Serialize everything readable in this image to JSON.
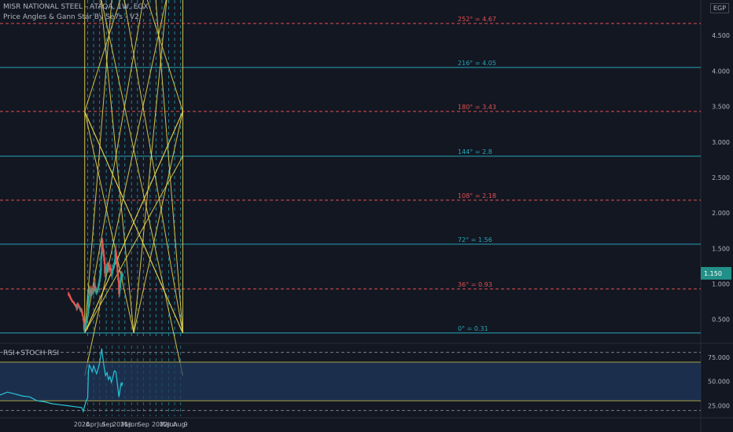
{
  "header": {
    "symbol_line": "MISR NATIONAL STEEL - ATAQA, 1W, EGX",
    "indicator_line": "Price Angles & Gann Star By Se7s - V2",
    "currency_badge": "EGP"
  },
  "lower_pane": {
    "title": "RSI+STOCH RSI"
  },
  "colors": {
    "background": "#131722",
    "gann_lines": "#e6d44a",
    "teal_levels": "#26a6b8",
    "red_levels": "#e05151",
    "up_candle": "#26a69a",
    "down_candle": "#ef5350",
    "rsi_line": "#26c6da",
    "rsi_band_fill": "#1f3a5f"
  },
  "chart_data": [
    {
      "type": "candlestick",
      "xlim": [
        -110,
        833
      ],
      "ylim": [
        0.22,
        5.0
      ],
      "x_ticks": [
        {
          "x": 0,
          "label": "2020"
        },
        {
          "x": 13,
          "label": "Apr"
        },
        {
          "x": 26,
          "label": "Jul"
        },
        {
          "x": 35,
          "label": "Sep"
        },
        {
          "x": 52,
          "label": "2021"
        },
        {
          "x": 61,
          "label": "Mar"
        },
        {
          "x": 70,
          "label": "Jun"
        },
        {
          "x": 83,
          "label": "Sep"
        },
        {
          "x": 105,
          "label": "2022"
        },
        {
          "x": 113,
          "label": "Mar"
        },
        {
          "x": 122,
          "label": "Jun"
        },
        {
          "x": 131,
          "label": "Aug"
        },
        {
          "x": 140,
          "label": "9"
        }
      ],
      "y_ticks": [
        {
          "v": 0.5,
          "label": "0.500"
        },
        {
          "v": 1.0,
          "label": "1.000"
        },
        {
          "v": 1.5,
          "label": "1.500"
        },
        {
          "v": 2.0,
          "label": "2.000"
        },
        {
          "v": 2.5,
          "label": "2.500"
        },
        {
          "v": 3.0,
          "label": "3.000"
        },
        {
          "v": 3.5,
          "label": "3.500"
        },
        {
          "v": 4.0,
          "label": "4.000"
        },
        {
          "v": 4.5,
          "label": "4.500"
        }
      ],
      "last_price_label": "1.150",
      "gann_levels": [
        {
          "v": 0.31,
          "label": "0° = 0.31",
          "color": "teal"
        },
        {
          "v": 0.93,
          "label": "36° = 0.93",
          "color": "red"
        },
        {
          "v": 1.56,
          "label": "72° = 1.56",
          "color": "teal"
        },
        {
          "v": 2.18,
          "label": "108° = 2.18",
          "color": "red"
        },
        {
          "v": 2.8,
          "label": "144° = 2.8",
          "color": "teal"
        },
        {
          "v": 3.43,
          "label": "180° = 3.43",
          "color": "red"
        },
        {
          "v": 4.05,
          "label": "216° = 4.05",
          "color": "teal"
        },
        {
          "v": 4.67,
          "label": "252° = 4.67",
          "color": "red"
        }
      ],
      "candles": [
        {
          "x": -18,
          "o": 0.86,
          "h": 0.89,
          "l": 0.83,
          "c": 0.85
        },
        {
          "x": -17,
          "o": 0.85,
          "h": 0.88,
          "l": 0.82,
          "c": 0.84
        },
        {
          "x": -16,
          "o": 0.84,
          "h": 0.86,
          "l": 0.8,
          "c": 0.81
        },
        {
          "x": -15,
          "o": 0.81,
          "h": 0.83,
          "l": 0.78,
          "c": 0.79
        },
        {
          "x": -14,
          "o": 0.79,
          "h": 0.81,
          "l": 0.76,
          "c": 0.77
        },
        {
          "x": -13,
          "o": 0.77,
          "h": 0.79,
          "l": 0.74,
          "c": 0.75
        },
        {
          "x": -12,
          "o": 0.75,
          "h": 0.77,
          "l": 0.73,
          "c": 0.74
        },
        {
          "x": -11,
          "o": 0.74,
          "h": 0.76,
          "l": 0.72,
          "c": 0.73
        },
        {
          "x": -10,
          "o": 0.73,
          "h": 0.75,
          "l": 0.7,
          "c": 0.71
        },
        {
          "x": -9,
          "o": 0.71,
          "h": 0.73,
          "l": 0.68,
          "c": 0.7
        },
        {
          "x": -8,
          "o": 0.7,
          "h": 0.72,
          "l": 0.67,
          "c": 0.69
        },
        {
          "x": -7,
          "o": 0.69,
          "h": 0.71,
          "l": 0.62,
          "c": 0.65
        },
        {
          "x": -6,
          "o": 0.65,
          "h": 0.74,
          "l": 0.63,
          "c": 0.72
        },
        {
          "x": -5,
          "o": 0.72,
          "h": 0.74,
          "l": 0.68,
          "c": 0.7
        },
        {
          "x": -4,
          "o": 0.7,
          "h": 0.72,
          "l": 0.66,
          "c": 0.68
        },
        {
          "x": -3,
          "o": 0.68,
          "h": 0.7,
          "l": 0.64,
          "c": 0.66
        },
        {
          "x": -2,
          "o": 0.66,
          "h": 0.68,
          "l": 0.61,
          "c": 0.63
        },
        {
          "x": -1,
          "o": 0.63,
          "h": 0.66,
          "l": 0.6,
          "c": 0.64
        },
        {
          "x": 0,
          "o": 0.64,
          "h": 0.66,
          "l": 0.58,
          "c": 0.6
        },
        {
          "x": 1,
          "o": 0.6,
          "h": 0.62,
          "l": 0.54,
          "c": 0.55
        },
        {
          "x": 2,
          "o": 0.55,
          "h": 0.57,
          "l": 0.47,
          "c": 0.49
        },
        {
          "x": 3,
          "o": 0.49,
          "h": 0.51,
          "l": 0.33,
          "c": 0.36
        },
        {
          "x": 4,
          "o": 0.36,
          "h": 0.45,
          "l": 0.31,
          "c": 0.43
        },
        {
          "x": 5,
          "o": 0.43,
          "h": 0.47,
          "l": 0.38,
          "c": 0.4
        },
        {
          "x": 6,
          "o": 0.4,
          "h": 0.49,
          "l": 0.38,
          "c": 0.47
        },
        {
          "x": 7,
          "o": 0.47,
          "h": 0.55,
          "l": 0.45,
          "c": 0.53
        },
        {
          "x": 8,
          "o": 0.53,
          "h": 0.62,
          "l": 0.5,
          "c": 0.59
        },
        {
          "x": 9,
          "o": 0.59,
          "h": 0.83,
          "l": 0.55,
          "c": 0.8
        },
        {
          "x": 10,
          "o": 0.8,
          "h": 0.97,
          "l": 0.75,
          "c": 0.93
        },
        {
          "x": 11,
          "o": 0.93,
          "h": 0.98,
          "l": 0.83,
          "c": 0.86
        },
        {
          "x": 12,
          "o": 0.86,
          "h": 0.95,
          "l": 0.82,
          "c": 0.91
        },
        {
          "x": 13,
          "o": 0.91,
          "h": 0.97,
          "l": 0.85,
          "c": 0.88
        },
        {
          "x": 14,
          "o": 0.88,
          "h": 0.94,
          "l": 0.84,
          "c": 0.9
        },
        {
          "x": 15,
          "o": 0.9,
          "h": 0.96,
          "l": 0.86,
          "c": 0.89
        },
        {
          "x": 16,
          "o": 0.89,
          "h": 0.95,
          "l": 0.85,
          "c": 0.92
        },
        {
          "x": 17,
          "o": 0.92,
          "h": 1.02,
          "l": 0.89,
          "c": 0.98
        },
        {
          "x": 18,
          "o": 0.98,
          "h": 1.08,
          "l": 0.9,
          "c": 0.92
        },
        {
          "x": 19,
          "o": 0.92,
          "h": 0.97,
          "l": 0.86,
          "c": 0.88
        },
        {
          "x": 20,
          "o": 0.88,
          "h": 0.94,
          "l": 0.84,
          "c": 0.9
        },
        {
          "x": 21,
          "o": 0.9,
          "h": 0.95,
          "l": 0.86,
          "c": 0.92
        },
        {
          "x": 22,
          "o": 0.92,
          "h": 1.0,
          "l": 0.88,
          "c": 0.96
        },
        {
          "x": 23,
          "o": 0.96,
          "h": 1.05,
          "l": 0.92,
          "c": 1.02
        },
        {
          "x": 24,
          "o": 1.02,
          "h": 1.12,
          "l": 0.98,
          "c": 1.08
        },
        {
          "x": 25,
          "o": 1.08,
          "h": 1.22,
          "l": 1.04,
          "c": 1.18
        },
        {
          "x": 26,
          "o": 1.18,
          "h": 1.45,
          "l": 1.12,
          "c": 1.4
        },
        {
          "x": 27,
          "o": 1.4,
          "h": 1.68,
          "l": 1.35,
          "c": 1.62
        },
        {
          "x": 28,
          "o": 1.62,
          "h": 1.65,
          "l": 1.45,
          "c": 1.5
        },
        {
          "x": 29,
          "o": 1.5,
          "h": 1.56,
          "l": 1.38,
          "c": 1.42
        },
        {
          "x": 30,
          "o": 1.42,
          "h": 1.48,
          "l": 1.28,
          "c": 1.32
        },
        {
          "x": 31,
          "o": 1.32,
          "h": 1.38,
          "l": 1.1,
          "c": 1.15
        },
        {
          "x": 32,
          "o": 1.15,
          "h": 1.24,
          "l": 1.08,
          "c": 1.2
        },
        {
          "x": 33,
          "o": 1.2,
          "h": 1.28,
          "l": 1.15,
          "c": 1.24
        },
        {
          "x": 34,
          "o": 1.24,
          "h": 1.3,
          "l": 1.18,
          "c": 1.26
        },
        {
          "x": 35,
          "o": 1.26,
          "h": 1.32,
          "l": 1.2,
          "c": 1.23
        },
        {
          "x": 36,
          "o": 1.23,
          "h": 1.29,
          "l": 1.16,
          "c": 1.2
        },
        {
          "x": 37,
          "o": 1.2,
          "h": 1.27,
          "l": 1.16,
          "c": 1.24
        },
        {
          "x": 38,
          "o": 1.24,
          "h": 1.29,
          "l": 1.19,
          "c": 1.22
        },
        {
          "x": 39,
          "o": 1.22,
          "h": 1.27,
          "l": 1.15,
          "c": 1.18
        },
        {
          "x": 40,
          "o": 1.18,
          "h": 1.23,
          "l": 1.1,
          "c": 1.13
        },
        {
          "x": 41,
          "o": 1.13,
          "h": 1.21,
          "l": 1.1,
          "c": 1.19
        },
        {
          "x": 42,
          "o": 1.19,
          "h": 1.26,
          "l": 1.15,
          "c": 1.23
        },
        {
          "x": 43,
          "o": 1.23,
          "h": 1.3,
          "l": 1.19,
          "c": 1.27
        },
        {
          "x": 44,
          "o": 1.27,
          "h": 1.35,
          "l": 1.22,
          "c": 1.31
        },
        {
          "x": 45,
          "o": 1.31,
          "h": 1.52,
          "l": 1.28,
          "c": 1.48
        },
        {
          "x": 46,
          "o": 1.48,
          "h": 1.55,
          "l": 1.36,
          "c": 1.4
        },
        {
          "x": 47,
          "o": 1.4,
          "h": 1.45,
          "l": 1.24,
          "c": 1.28
        },
        {
          "x": 48,
          "o": 1.28,
          "h": 1.33,
          "l": 1.12,
          "c": 1.16
        },
        {
          "x": 49,
          "o": 1.16,
          "h": 1.2,
          "l": 1.02,
          "c": 1.05
        },
        {
          "x": 50,
          "o": 1.05,
          "h": 1.08,
          "l": 0.82,
          "c": 0.86
        },
        {
          "x": 51,
          "o": 0.86,
          "h": 0.98,
          "l": 0.82,
          "c": 0.94
        },
        {
          "x": 52,
          "o": 0.94,
          "h": 1.1,
          "l": 0.9,
          "c": 1.06
        },
        {
          "x": 53,
          "o": 1.06,
          "h": 1.18,
          "l": 1.02,
          "c": 1.14
        },
        {
          "x": 54,
          "o": 1.14,
          "h": 1.18,
          "l": 1.08,
          "c": 1.1
        },
        {
          "x": 55,
          "o": 1.1,
          "h": 1.16,
          "l": 1.06,
          "c": 1.14
        }
      ]
    },
    {
      "type": "line",
      "title": "RSI+STOCH RSI",
      "xlim": [
        -110,
        833
      ],
      "ylim": [
        14,
        87
      ],
      "y_ticks": [
        {
          "v": 25,
          "label": "25.000"
        },
        {
          "v": 50,
          "label": "50.000"
        },
        {
          "v": 75,
          "label": "75.000"
        }
      ],
      "band": [
        30,
        70
      ],
      "dashed_levels": [
        20,
        80
      ],
      "series": [
        {
          "x": [
            -110,
            -100,
            -90,
            -80,
            -70,
            -60,
            -50,
            -40,
            -30,
            -20,
            -10,
            0,
            2,
            4,
            6,
            8,
            9,
            10,
            12,
            14,
            16,
            18,
            20,
            22,
            24,
            26,
            27,
            28,
            30,
            32,
            34,
            36,
            38,
            40,
            42,
            44,
            46,
            48,
            50,
            51,
            52,
            53,
            54,
            55
          ],
          "y": [
            36,
            39,
            37,
            35,
            34,
            30,
            29,
            27,
            26,
            25,
            24,
            23,
            19,
            25,
            30,
            33,
            60,
            67,
            64,
            60,
            66,
            62,
            58,
            63,
            69,
            79,
            84,
            77,
            65,
            56,
            59,
            52,
            55,
            49,
            55,
            61,
            60,
            47,
            34,
            38,
            44,
            48,
            46,
            49
          ]
        }
      ]
    }
  ]
}
